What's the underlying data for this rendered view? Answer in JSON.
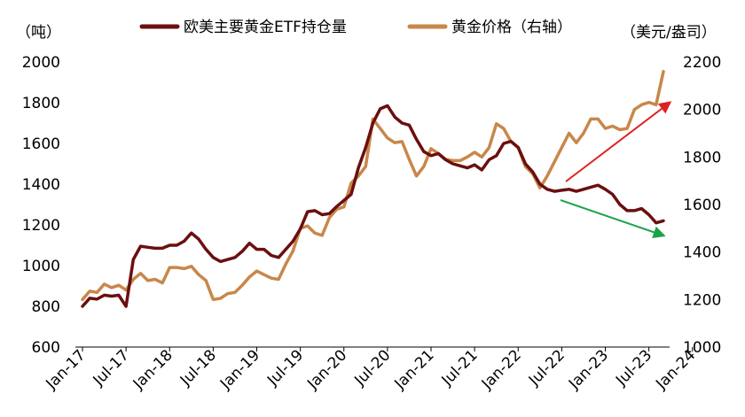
{
  "chart_data": {
    "type": "line",
    "title": "",
    "legend": {
      "placement": "top",
      "entries": [
        "欧美主要黄金ETF持仓量",
        "黄金价格（右轴）"
      ]
    },
    "left_axis": {
      "unit": "（吨）",
      "ylim": [
        600,
        2000
      ],
      "ticks": [
        "2000",
        "1800",
        "1600",
        "1400",
        "1200",
        "1000",
        "800",
        "600"
      ]
    },
    "right_axis": {
      "unit": "（美元/盎司）",
      "ylim": [
        1000,
        2200
      ],
      "ticks": [
        "2200",
        "2000",
        "1800",
        "1600",
        "1400",
        "1200",
        "1000"
      ]
    },
    "x_ticks": [
      "Jan-17",
      "Jul-17",
      "Jan-18",
      "Jul-18",
      "Jan-19",
      "Jul-19",
      "Jan-20",
      "Jul-20",
      "Jan-21",
      "Jul-21",
      "Jan-22",
      "Jul-22",
      "Jan-23",
      "Jul-23",
      "Jan-24"
    ],
    "x_start": "2017-01",
    "series": [
      {
        "name": "欧美主要黄金ETF持仓量",
        "axis": "left",
        "color": "#6b0f0f",
        "values": [
          800,
          840,
          835,
          855,
          850,
          855,
          800,
          1030,
          1095,
          1090,
          1085,
          1085,
          1100,
          1100,
          1120,
          1160,
          1130,
          1080,
          1040,
          1020,
          1030,
          1040,
          1070,
          1110,
          1080,
          1080,
          1050,
          1040,
          1080,
          1120,
          1180,
          1265,
          1270,
          1250,
          1255,
          1290,
          1320,
          1350,
          1480,
          1580,
          1700,
          1770,
          1785,
          1730,
          1700,
          1690,
          1620,
          1560,
          1540,
          1550,
          1520,
          1500,
          1490,
          1480,
          1495,
          1470,
          1520,
          1540,
          1600,
          1610,
          1580,
          1500,
          1460,
          1400,
          1375,
          1365,
          1370,
          1375,
          1365,
          1375,
          1385,
          1395,
          1375,
          1350,
          1300,
          1270,
          1270,
          1280,
          1250,
          1210,
          1220
        ]
      },
      {
        "name": "黄金价格（右轴）",
        "axis": "right",
        "color": "#c8874a",
        "values": [
          1200,
          1235,
          1230,
          1265,
          1250,
          1260,
          1240,
          1285,
          1310,
          1280,
          1285,
          1270,
          1335,
          1335,
          1330,
          1340,
          1305,
          1280,
          1200,
          1205,
          1225,
          1230,
          1260,
          1295,
          1320,
          1305,
          1290,
          1285,
          1350,
          1405,
          1500,
          1510,
          1480,
          1470,
          1545,
          1580,
          1590,
          1690,
          1720,
          1760,
          1960,
          1920,
          1880,
          1860,
          1865,
          1790,
          1720,
          1760,
          1835,
          1815,
          1790,
          1785,
          1785,
          1800,
          1820,
          1800,
          1840,
          1940,
          1920,
          1865,
          1840,
          1760,
          1730,
          1670,
          1720,
          1780,
          1840,
          1900,
          1860,
          1900,
          1960,
          1960,
          1920,
          1930,
          1915,
          1920,
          2000,
          2020,
          2030,
          2020,
          2160
        ]
      }
    ],
    "annotations": [
      {
        "type": "arrow",
        "color": "#e02020",
        "description": "up-arrow"
      },
      {
        "type": "arrow",
        "color": "#1aa34a",
        "description": "down-arrow"
      }
    ]
  }
}
